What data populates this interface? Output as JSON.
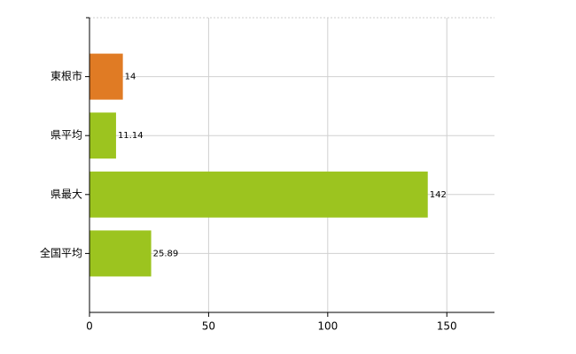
{
  "chart_data": {
    "type": "bar",
    "orientation": "horizontal",
    "categories": [
      "東根市",
      "県平均",
      "県最大",
      "全国平均"
    ],
    "values": [
      14,
      11.14,
      142,
      25.89
    ],
    "colors": [
      "#e07b24",
      "#9cc41f",
      "#9cc41f",
      "#9cc41f"
    ],
    "xlim": [
      0,
      170
    ],
    "xticks": [
      0,
      50,
      100,
      150
    ],
    "grid": true,
    "data_labels": true
  }
}
